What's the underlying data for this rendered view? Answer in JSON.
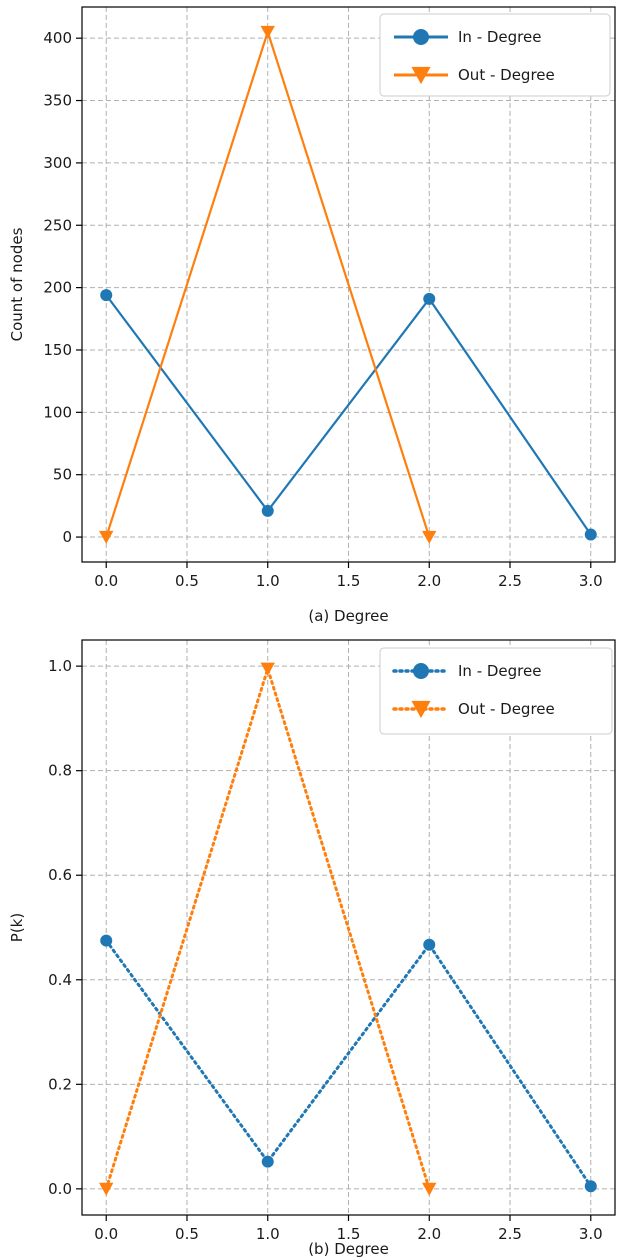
{
  "chart_data": [
    {
      "type": "line",
      "title": "",
      "xlabel": "(a) Degree",
      "ylabel": "Count of nodes",
      "xlim": [
        -0.15,
        3.15
      ],
      "ylim": [
        -20,
        425
      ],
      "xticks": [
        0.0,
        0.5,
        1.0,
        1.5,
        2.0,
        2.5,
        3.0
      ],
      "xtick_labels": [
        "0.0",
        "0.5",
        "1.0",
        "1.5",
        "2.0",
        "2.5",
        "3.0"
      ],
      "yticks": [
        0,
        50,
        100,
        150,
        200,
        250,
        300,
        350,
        400
      ],
      "ytick_labels": [
        "0",
        "50",
        "100",
        "150",
        "200",
        "250",
        "300",
        "350",
        "400"
      ],
      "grid": true,
      "legend_position": "top-right",
      "series": [
        {
          "name": "In - Degree",
          "color": "#1f77b4",
          "line_style": "solid",
          "marker": "circle",
          "x": [
            0,
            1,
            2,
            3
          ],
          "y": [
            194,
            21,
            191,
            2
          ]
        },
        {
          "name": "Out - Degree",
          "color": "#ff7f0e",
          "line_style": "solid",
          "marker": "triangle-down",
          "x": [
            0,
            1,
            2
          ],
          "y": [
            0,
            405,
            0
          ]
        }
      ]
    },
    {
      "type": "line",
      "title": "",
      "xlabel": "(b) Degree",
      "ylabel": "P(k)",
      "xlim": [
        -0.15,
        3.15
      ],
      "ylim": [
        -0.05,
        1.05
      ],
      "xticks": [
        0.0,
        0.5,
        1.0,
        1.5,
        2.0,
        2.5,
        3.0
      ],
      "xtick_labels": [
        "0.0",
        "0.5",
        "1.0",
        "1.5",
        "2.0",
        "2.5",
        "3.0"
      ],
      "yticks": [
        0.0,
        0.2,
        0.4,
        0.6,
        0.8,
        1.0
      ],
      "ytick_labels": [
        "0.0",
        "0.2",
        "0.4",
        "0.6",
        "0.8",
        "1.0"
      ],
      "grid": true,
      "legend_position": "top-right",
      "series": [
        {
          "name": "In - Degree",
          "color": "#1f77b4",
          "line_style": "dotted",
          "marker": "circle",
          "x": [
            0,
            1,
            2,
            3
          ],
          "y": [
            0.475,
            0.052,
            0.467,
            0.005
          ]
        },
        {
          "name": "Out - Degree",
          "color": "#ff7f0e",
          "line_style": "dotted",
          "marker": "triangle-down",
          "x": [
            0,
            1,
            2
          ],
          "y": [
            0.0,
            0.995,
            0.0
          ]
        }
      ]
    }
  ]
}
